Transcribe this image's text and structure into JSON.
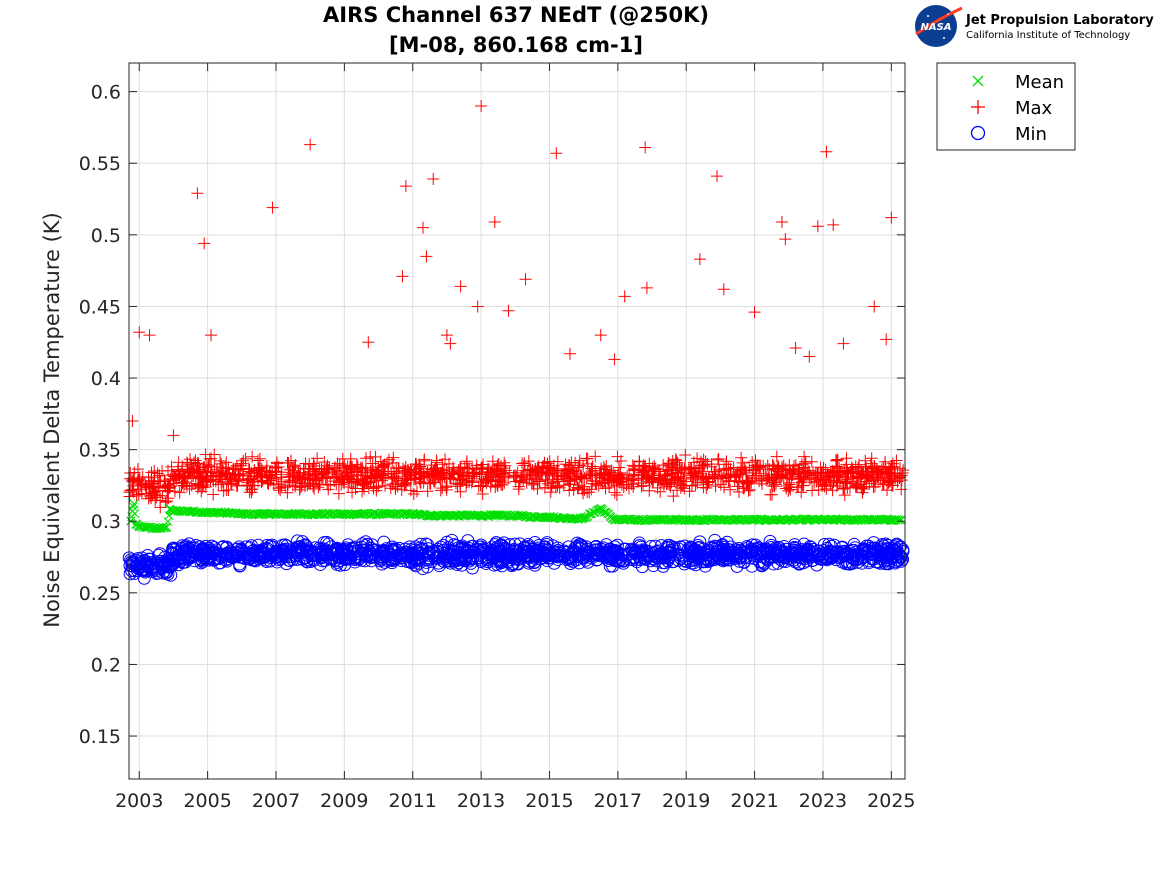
{
  "logo": {
    "name": "Jet Propulsion Laboratory",
    "subtitle": "California Institute of Technology",
    "badge": "NASA"
  },
  "chart_data": {
    "type": "scatter",
    "title": "AIRS Channel 637 NEdT (@250K)",
    "subtitle": "[M-08, 860.168 cm-1]",
    "xlabel": "",
    "ylabel": "Noise Equivalent Delta Temperature (K)",
    "xlim": [
      2002.7,
      2025.4
    ],
    "ylim": [
      0.12,
      0.62
    ],
    "xticks": [
      "2003",
      "2005",
      "2007",
      "2009",
      "2011",
      "2013",
      "2015",
      "2017",
      "2019",
      "2021",
      "2023",
      "2025"
    ],
    "yticks": [
      "0.15",
      "0.2",
      "0.25",
      "0.3",
      "0.35",
      "0.4",
      "0.45",
      "0.5",
      "0.55",
      "0.6"
    ],
    "grid": true,
    "legend_position": "outside-top-right",
    "series": [
      {
        "name": "Mean",
        "marker": "x",
        "color": "#00e000",
        "x": [
          2002.75,
          2002.8,
          2002.85,
          2002.9,
          2003.0,
          2003.2,
          2003.4,
          2003.6,
          2003.8,
          2003.9,
          2004.0,
          2004.5,
          2005.0,
          2005.5,
          2006.0,
          2006.5,
          2007.0,
          2007.5,
          2008.0,
          2008.5,
          2009.0,
          2009.5,
          2010.0,
          2010.5,
          2011.0,
          2011.5,
          2012.0,
          2012.5,
          2013.0,
          2013.5,
          2014.0,
          2014.5,
          2015.0,
          2015.5,
          2016.0,
          2016.5,
          2016.9,
          2017.5,
          2018.0,
          2018.5,
          2019.0,
          2019.5,
          2020.0,
          2020.5,
          2021.0,
          2021.5,
          2022.0,
          2022.5,
          2023.0,
          2023.5,
          2024.0,
          2024.5,
          2025.0,
          2025.3
        ],
        "y": [
          0.3,
          0.307,
          0.312,
          0.298,
          0.296,
          0.296,
          0.295,
          0.295,
          0.296,
          0.308,
          0.307,
          0.307,
          0.306,
          0.306,
          0.305,
          0.305,
          0.305,
          0.305,
          0.305,
          0.305,
          0.305,
          0.305,
          0.305,
          0.305,
          0.305,
          0.304,
          0.304,
          0.304,
          0.304,
          0.304,
          0.304,
          0.303,
          0.303,
          0.302,
          0.302,
          0.309,
          0.301,
          0.301,
          0.301,
          0.301,
          0.301,
          0.301,
          0.301,
          0.301,
          0.301,
          0.301,
          0.301,
          0.301,
          0.301,
          0.301,
          0.301,
          0.301,
          0.301,
          0.301
        ]
      },
      {
        "name": "Max",
        "marker": "+",
        "color": "#ff0000",
        "x": [
          2002.8,
          2003.0,
          2003.3,
          2004.0,
          2004.7,
          2004.9,
          2005.1,
          2006.9,
          2008.0,
          2009.7,
          2010.7,
          2010.8,
          2011.3,
          2011.4,
          2011.6,
          2012.0,
          2012.1,
          2012.4,
          2012.9,
          2013.0,
          2013.4,
          2013.8,
          2014.3,
          2015.2,
          2015.6,
          2016.5,
          2016.9,
          2017.2,
          2017.8,
          2017.85,
          2019.4,
          2019.9,
          2020.1,
          2021.0,
          2021.8,
          2021.9,
          2022.2,
          2022.6,
          2022.85,
          2023.1,
          2023.3,
          2023.6,
          2024.5,
          2024.85,
          2025.0
        ],
        "y": [
          0.37,
          0.432,
          0.43,
          0.36,
          0.529,
          0.494,
          0.43,
          0.519,
          0.563,
          0.425,
          0.471,
          0.534,
          0.505,
          0.485,
          0.539,
          0.43,
          0.424,
          0.464,
          0.45,
          0.59,
          0.509,
          0.447,
          0.469,
          0.557,
          0.417,
          0.43,
          0.413,
          0.457,
          0.561,
          0.463,
          0.483,
          0.541,
          0.462,
          0.446,
          0.509,
          0.497,
          0.421,
          0.415,
          0.506,
          0.558,
          0.507,
          0.424,
          0.45,
          0.427,
          0.512
        ],
        "bands": [
          {
            "from": 2002.7,
            "to": 2003.95,
            "center": 0.325,
            "spread": 0.012
          },
          {
            "from": 2003.95,
            "to": 2025.35,
            "center": 0.332,
            "spread": 0.012
          }
        ]
      },
      {
        "name": "Min",
        "marker": "o",
        "color": "#0000ff",
        "x": [
          2002.75,
          2003.0,
          2003.5,
          2004.0,
          2005.0,
          2006.0,
          2007.0,
          2008.0,
          2009.0,
          2010.0,
          2011.0,
          2012.0,
          2013.0,
          2014.0,
          2015.0,
          2016.0,
          2017.0,
          2018.0,
          2019.0,
          2020.0,
          2021.0,
          2022.0,
          2023.0,
          2024.0,
          2025.0,
          2025.3
        ],
        "y": [
          0.273,
          0.268,
          0.268,
          0.28,
          0.28,
          0.279,
          0.279,
          0.279,
          0.279,
          0.279,
          0.278,
          0.278,
          0.277,
          0.277,
          0.276,
          0.275,
          0.275,
          0.274,
          0.274,
          0.274,
          0.274,
          0.274,
          0.274,
          0.274,
          0.274,
          0.275
        ],
        "bands": [
          {
            "from": 2002.7,
            "to": 2003.95,
            "center": 0.269,
            "spread": 0.008
          },
          {
            "from": 2003.95,
            "to": 2025.35,
            "center": 0.277,
            "spread": 0.008
          }
        ]
      }
    ]
  }
}
